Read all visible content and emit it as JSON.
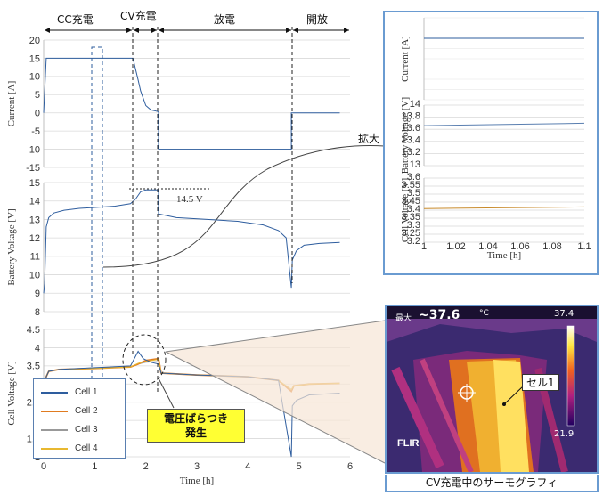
{
  "phases": [
    "CC充電",
    "CV充電",
    "放電",
    "開放"
  ],
  "annotations": {
    "voltage_label": "14.5 V",
    "zoom_label": "拡大",
    "callout": [
      "電圧ばらつき",
      "発生"
    ]
  },
  "legend": [
    {
      "name": "Cell 1",
      "color": "#2e5d9e"
    },
    {
      "name": "Cell 2",
      "color": "#e07b20"
    },
    {
      "name": "Cell 3",
      "color": "#999999"
    },
    {
      "name": "Cell 4",
      "color": "#e8b830"
    }
  ],
  "thermo": {
    "max_label": "最大",
    "max_value": "~37.6",
    "unit": "°C",
    "scale_top": "37.4",
    "scale_bottom": "21.9",
    "cell_label": "セル1",
    "brand": "FLIR",
    "caption": "CV充電中のサーモグラフィ"
  },
  "chart_data": [
    {
      "type": "line",
      "ylabel": "Current [A]",
      "ylim": [
        -15,
        20
      ],
      "yticks": [
        "20",
        "15",
        "10",
        "5",
        "0",
        "-5",
        "-10",
        "-15"
      ],
      "series": [
        {
          "x": [
            0,
            0.05,
            0.1,
            1.75,
            1.8,
            1.85,
            1.9,
            2.0,
            2.1,
            2.2,
            2.25,
            2.25,
            4.85,
            4.85,
            5.8
          ],
          "values": [
            0,
            15,
            15,
            15,
            12,
            9,
            6,
            2,
            0.8,
            0.5,
            0.3,
            -10,
            -10,
            0,
            0
          ]
        }
      ]
    },
    {
      "type": "line",
      "ylabel": "Battery Voltage [V]",
      "ylim": [
        8,
        15
      ],
      "yticks": [
        "15",
        "14",
        "13",
        "12",
        "11",
        "10",
        "9",
        "8"
      ],
      "series": [
        {
          "x": [
            0,
            0.02,
            0.05,
            0.1,
            0.2,
            0.4,
            0.7,
            1.0,
            1.4,
            1.7,
            1.8,
            1.9,
            2.0,
            2.25,
            2.25,
            2.6,
            3.2,
            3.8,
            4.3,
            4.6,
            4.75,
            4.85,
            4.87,
            4.95,
            5.1,
            5.4,
            5.8
          ],
          "values": [
            9.0,
            9.5,
            12.6,
            13.1,
            13.35,
            13.5,
            13.6,
            13.65,
            13.72,
            13.85,
            14.1,
            14.5,
            14.6,
            14.6,
            13.3,
            13.1,
            13.0,
            12.9,
            12.7,
            12.4,
            12.0,
            9.3,
            10.8,
            11.3,
            11.6,
            11.7,
            11.75
          ]
        }
      ]
    },
    {
      "type": "line",
      "ylabel": "Cell Voltage [V]",
      "xlabel": "Time [h]",
      "ylim": [
        1,
        4.5
      ],
      "xlim": [
        0,
        6
      ],
      "xticks": [
        "0",
        "1",
        "2",
        "3",
        "4",
        "5",
        "6"
      ],
      "yticks": [
        "4.5",
        "4",
        "3.5",
        "3",
        "2.5",
        "2",
        "1.5",
        "1"
      ],
      "series": [
        {
          "name": "Cell 1",
          "x": [
            0,
            0.05,
            0.1,
            0.3,
            1.0,
            1.7,
            1.85,
            1.95,
            2.1,
            2.25,
            2.3,
            3.0,
            4.0,
            4.6,
            4.85,
            4.87,
            4.95,
            5.2,
            5.8
          ],
          "values": [
            1.9,
            3.2,
            3.35,
            3.4,
            3.45,
            3.5,
            3.9,
            3.7,
            3.6,
            3.55,
            3.3,
            3.25,
            3.2,
            3.1,
            1.0,
            2.4,
            2.55,
            2.7,
            2.75
          ]
        },
        {
          "name": "Cell 2",
          "x": [
            0,
            0.05,
            0.1,
            0.3,
            1.0,
            1.7,
            1.85,
            2.0,
            2.25,
            2.3,
            3.0,
            4.0,
            4.6,
            4.85,
            4.9,
            5.2,
            5.8
          ],
          "values": [
            2.3,
            3.2,
            3.35,
            3.4,
            3.43,
            3.47,
            3.55,
            3.65,
            3.7,
            3.3,
            3.25,
            3.2,
            3.1,
            2.8,
            2.95,
            3.0,
            3.02
          ]
        },
        {
          "name": "Cell 3",
          "x": [
            0,
            0.05,
            0.1,
            0.3,
            1.0,
            1.7,
            1.85,
            2.0,
            2.25,
            2.3,
            3.0,
            4.0,
            4.6,
            4.85,
            4.9,
            5.2,
            5.8
          ],
          "values": [
            2.3,
            3.2,
            3.35,
            3.4,
            3.43,
            3.47,
            3.55,
            3.6,
            3.62,
            3.3,
            3.25,
            3.2,
            3.1,
            2.85,
            2.95,
            3.0,
            3.02
          ]
        },
        {
          "name": "Cell 4",
          "x": [
            0,
            0.05,
            0.1,
            0.3,
            1.0,
            1.7,
            1.85,
            2.0,
            2.25,
            2.3,
            3.0,
            4.0,
            4.6,
            4.85,
            4.9,
            5.2,
            5.8
          ],
          "values": [
            2.3,
            3.2,
            3.35,
            3.4,
            3.43,
            3.47,
            3.57,
            3.62,
            3.68,
            3.3,
            3.25,
            3.2,
            3.1,
            2.85,
            2.95,
            3.0,
            3.02
          ]
        }
      ]
    },
    {
      "type": "line",
      "ylabel": "Current [A]",
      "xlim": [
        1,
        1.1
      ],
      "series": [
        {
          "x": [
            1,
            1.1
          ],
          "values": [
            15,
            15
          ]
        }
      ]
    },
    {
      "type": "line",
      "ylabel": "Battery Voltage [V]",
      "ylim": [
        13,
        14
      ],
      "yticks": [
        "14",
        "13.8",
        "13.6",
        "13.4",
        "13.2",
        "13"
      ],
      "series": [
        {
          "x": [
            1,
            1.1
          ],
          "values": [
            13.66,
            13.7
          ]
        }
      ]
    },
    {
      "type": "line",
      "ylabel": "Cell Voltage [V]",
      "xlabel": "Time [h]",
      "ylim": [
        3.2,
        3.6
      ],
      "xlim": [
        1,
        1.1
      ],
      "xticks": [
        "1",
        "1.02",
        "1.04",
        "1.06",
        "1.08",
        "1.1"
      ],
      "yticks": [
        "3.6",
        "3.55",
        "3.5",
        "3.45",
        "3.4",
        "3.35",
        "3.3",
        "3.25",
        "3.2"
      ],
      "series": [
        {
          "x": [
            1,
            1.1
          ],
          "values": [
            3.41,
            3.42
          ]
        }
      ]
    }
  ]
}
